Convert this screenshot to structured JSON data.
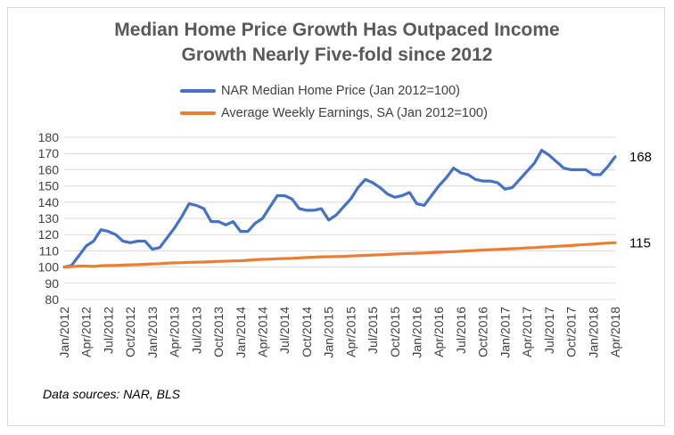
{
  "title_lines": [
    "Median Home Price Growth Has Outpaced Income",
    "Growth Nearly Five-fold since 2012"
  ],
  "source": "Data sources: NAR, BLS",
  "chart_data": {
    "type": "line",
    "title": "Median Home Price Growth Has Outpaced Income Growth Nearly Five-fold since 2012",
    "ylim": [
      80,
      180
    ],
    "ytick_step": 10,
    "grid": true,
    "legend_position": "top",
    "x_labels": [
      "Jan/2012",
      "Apr/2012",
      "Jul/2012",
      "Oct/2012",
      "Jan/2013",
      "Apr/2013",
      "Jul/2013",
      "Oct/2013",
      "Jan/2014",
      "Apr/2014",
      "Jul/2014",
      "Oct/2014",
      "Jan/2015",
      "Apr/2015",
      "Jul/2015",
      "Oct/2015",
      "Jan/2016",
      "Apr/2016",
      "Jul/2016",
      "Oct/2016",
      "Jan/2017",
      "Apr/2017",
      "Jul/2017",
      "Oct/2017",
      "Jan/2018",
      "Apr/2018"
    ],
    "series": [
      {
        "name": "NAR Median Home Price (Jan 2012=100)",
        "color": "#4472C4",
        "end_label": "168",
        "values": [
          100,
          101,
          107,
          113,
          116,
          123,
          122,
          120,
          116,
          115,
          116,
          116,
          111,
          112,
          118,
          124,
          131,
          139,
          138,
          136,
          128,
          128,
          126,
          128,
          122,
          122,
          127,
          130,
          137,
          144,
          144,
          142,
          136,
          135,
          135,
          136,
          129,
          132,
          137,
          142,
          149,
          154,
          152,
          149,
          145,
          143,
          144,
          146,
          139,
          138,
          144,
          150,
          155,
          161,
          158,
          157,
          154,
          153,
          153,
          152,
          148,
          149,
          154,
          159,
          164,
          172,
          169,
          165,
          161,
          160,
          160,
          160,
          157,
          157,
          162,
          168
        ]
      },
      {
        "name": "Average Weekly Earnings, SA  (Jan 2012=100)",
        "color": "#ED7D31",
        "end_label": "115",
        "values": [
          100,
          100.3,
          100.6,
          100.6,
          100.4,
          100.8,
          101.0,
          101.0,
          101.2,
          101.4,
          101.5,
          101.7,
          101.9,
          102.1,
          102.4,
          102.6,
          102.7,
          102.9,
          103.0,
          103.1,
          103.3,
          103.5,
          103.6,
          103.8,
          103.9,
          104.2,
          104.5,
          104.8,
          104.9,
          105.1,
          105.3,
          105.4,
          105.6,
          105.9,
          106.1,
          106.3,
          106.4,
          106.5,
          106.6,
          106.8,
          107.0,
          107.2,
          107.4,
          107.6,
          107.8,
          108.0,
          108.2,
          108.4,
          108.5,
          108.7,
          108.9,
          109.1,
          109.3,
          109.5,
          109.8,
          110.0,
          110.2,
          110.5,
          110.7,
          110.9,
          111.1,
          111.3,
          111.5,
          111.8,
          112.0,
          112.3,
          112.5,
          112.8,
          113.0,
          113.3,
          113.6,
          113.9,
          114.2,
          114.5,
          114.8,
          115.0
        ]
      }
    ]
  }
}
